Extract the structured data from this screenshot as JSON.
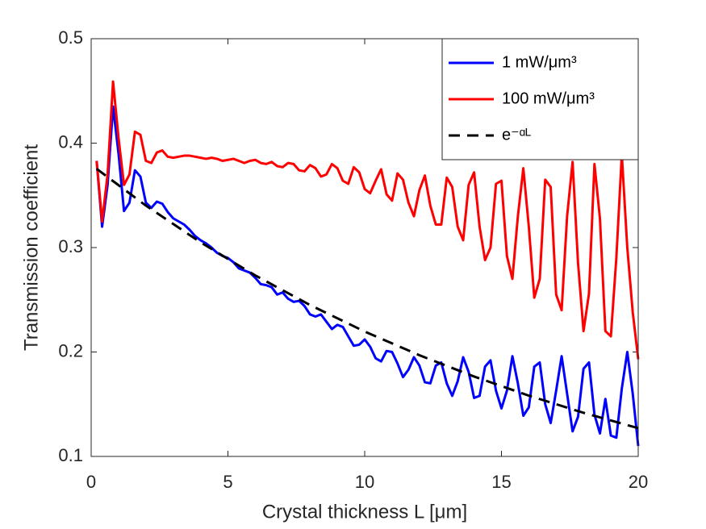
{
  "chart_data": {
    "type": "line",
    "xlabel": "Crystal thickness L [μm]",
    "ylabel": "Transmission coefficient",
    "xlim": [
      0,
      20
    ],
    "xticks": [
      0,
      5,
      10,
      15,
      20
    ],
    "ylim": [
      0.1,
      0.5
    ],
    "yticks": [
      0.1,
      0.2,
      0.3,
      0.4,
      0.5
    ],
    "legend": "upper right",
    "x": [
      0.2,
      0.4,
      0.6,
      0.8,
      1.0,
      1.2,
      1.4,
      1.6,
      1.8,
      2.0,
      2.2,
      2.4,
      2.6,
      2.8,
      3.0,
      3.2,
      3.4,
      3.6,
      3.8,
      4.0,
      4.2,
      4.4,
      4.6,
      4.8,
      5.0,
      5.2,
      5.4,
      5.6,
      5.8,
      6.0,
      6.2,
      6.4,
      6.6,
      6.8,
      7.0,
      7.2,
      7.4,
      7.6,
      7.8,
      8.0,
      8.2,
      8.4,
      8.6,
      8.8,
      9.0,
      9.2,
      9.4,
      9.6,
      9.8,
      10.0,
      10.2,
      10.4,
      10.6,
      10.8,
      11.0,
      11.2,
      11.4,
      11.6,
      11.8,
      12.0,
      12.2,
      12.4,
      12.6,
      12.8,
      13.0,
      13.2,
      13.4,
      13.6,
      13.8,
      14.0,
      14.2,
      14.4,
      14.6,
      14.8,
      15.0,
      15.2,
      15.4,
      15.6,
      15.8,
      16.0,
      16.2,
      16.4,
      16.6,
      16.8,
      17.0,
      17.2,
      17.4,
      17.6,
      17.8,
      18.0,
      18.2,
      18.4,
      18.6,
      18.8,
      19.0,
      19.2,
      19.4,
      19.6,
      19.8,
      20.0
    ],
    "series": [
      {
        "name": "1 mW/μm³",
        "color": "#0000ff",
        "dash": "solid",
        "values": [
          0.383,
          0.32,
          0.36,
          0.435,
          0.39,
          0.335,
          0.343,
          0.374,
          0.368,
          0.343,
          0.338,
          0.344,
          0.342,
          0.334,
          0.328,
          0.325,
          0.322,
          0.317,
          0.311,
          0.307,
          0.304,
          0.3,
          0.295,
          0.292,
          0.29,
          0.286,
          0.28,
          0.278,
          0.276,
          0.271,
          0.265,
          0.264,
          0.262,
          0.255,
          0.257,
          0.251,
          0.248,
          0.249,
          0.244,
          0.236,
          0.234,
          0.236,
          0.229,
          0.222,
          0.226,
          0.224,
          0.215,
          0.206,
          0.207,
          0.212,
          0.205,
          0.194,
          0.191,
          0.201,
          0.2,
          0.189,
          0.176,
          0.183,
          0.195,
          0.187,
          0.171,
          0.17,
          0.187,
          0.19,
          0.17,
          0.158,
          0.172,
          0.195,
          0.181,
          0.156,
          0.158,
          0.186,
          0.192,
          0.163,
          0.146,
          0.163,
          0.196,
          0.17,
          0.139,
          0.147,
          0.186,
          0.19,
          0.15,
          0.132,
          0.163,
          0.196,
          0.16,
          0.124,
          0.138,
          0.184,
          0.19,
          0.14,
          0.122,
          0.155,
          0.12,
          0.118,
          0.165,
          0.2,
          0.16,
          0.11
        ]
      },
      {
        "name": "100 mW/μm³",
        "color": "#ff0000",
        "dash": "solid",
        "values": [
          0.383,
          0.325,
          0.37,
          0.459,
          0.405,
          0.36,
          0.37,
          0.411,
          0.408,
          0.383,
          0.381,
          0.391,
          0.393,
          0.387,
          0.386,
          0.387,
          0.388,
          0.388,
          0.387,
          0.386,
          0.385,
          0.386,
          0.385,
          0.383,
          0.384,
          0.385,
          0.383,
          0.381,
          0.383,
          0.384,
          0.381,
          0.38,
          0.382,
          0.378,
          0.377,
          0.381,
          0.38,
          0.374,
          0.373,
          0.379,
          0.376,
          0.368,
          0.37,
          0.38,
          0.376,
          0.364,
          0.361,
          0.377,
          0.372,
          0.356,
          0.352,
          0.364,
          0.375,
          0.351,
          0.345,
          0.371,
          0.365,
          0.343,
          0.33,
          0.355,
          0.369,
          0.34,
          0.322,
          0.322,
          0.367,
          0.358,
          0.32,
          0.307,
          0.36,
          0.372,
          0.32,
          0.288,
          0.3,
          0.361,
          0.364,
          0.292,
          0.27,
          0.33,
          0.376,
          0.32,
          0.252,
          0.27,
          0.365,
          0.358,
          0.255,
          0.24,
          0.33,
          0.382,
          0.285,
          0.22,
          0.256,
          0.38,
          0.328,
          0.22,
          0.215,
          0.29,
          0.389,
          0.3,
          0.238,
          0.193
        ]
      },
      {
        "name": "e⁻ᵅᴸ",
        "color": "#000000",
        "dash": "dashed",
        "x": [
          0.2,
          2,
          4,
          6,
          8,
          10,
          12,
          14,
          16,
          18,
          20
        ],
        "values": [
          0.3754,
          0.3402,
          0.305,
          0.2733,
          0.245,
          0.2196,
          0.1969,
          0.1765,
          0.1582,
          0.1418,
          0.1271
        ]
      }
    ]
  }
}
